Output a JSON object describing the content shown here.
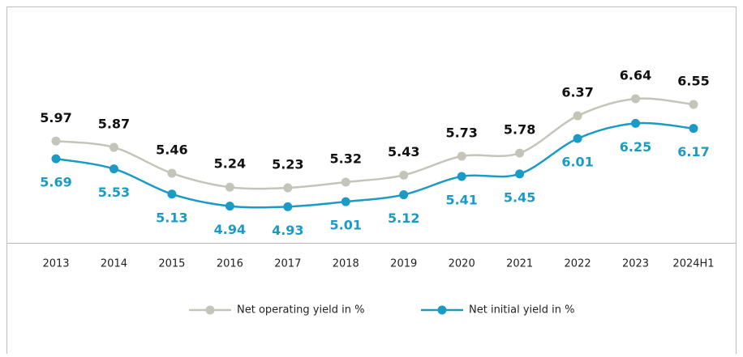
{
  "chart_data": {
    "type": "line",
    "categories": [
      "2013",
      "2014",
      "2015",
      "2016",
      "2017",
      "2018",
      "2019",
      "2020",
      "2021",
      "2022",
      "2023",
      "2024H1"
    ],
    "series": [
      {
        "name": "Net operating yield in %",
        "color": "#c4c4b9",
        "values": [
          5.97,
          5.87,
          5.46,
          5.24,
          5.23,
          5.32,
          5.43,
          5.73,
          5.78,
          6.37,
          6.64,
          6.55
        ]
      },
      {
        "name": "Net initial yield in %",
        "color": "#1a9bc6",
        "values": [
          5.69,
          5.53,
          5.13,
          4.94,
          4.93,
          5.01,
          5.12,
          5.41,
          5.45,
          6.01,
          6.25,
          6.17
        ]
      }
    ]
  }
}
